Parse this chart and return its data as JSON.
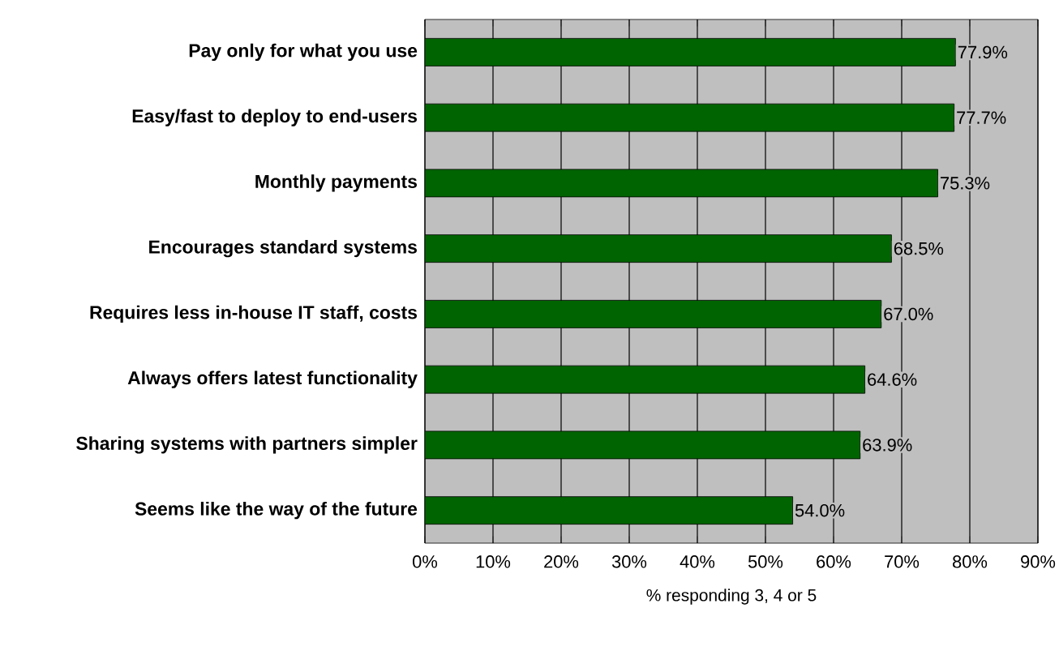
{
  "chart_data": {
    "type": "bar",
    "orientation": "horizontal",
    "xlabel": "% responding 3, 4 or 5",
    "categories": [
      "Pay only for what you use",
      "Easy/fast to deploy to end-users",
      "Monthly payments",
      "Encourages standard systems",
      "Requires less in-house IT staff, costs",
      "Always offers latest functionality",
      "Sharing systems with partners simpler",
      "Seems like the way of the future"
    ],
    "values": [
      77.9,
      77.7,
      75.3,
      68.5,
      67.0,
      64.6,
      63.9,
      54.0
    ],
    "value_labels": [
      "77.9%",
      "77.7%",
      "75.3%",
      "68.5%",
      "67.0%",
      "64.6%",
      "63.9%",
      "54.0%"
    ],
    "color": "#006400",
    "xlim": [
      0,
      90
    ],
    "xticks": [
      {
        "value": 0,
        "label": "0%"
      },
      {
        "value": 10,
        "label": "10%"
      },
      {
        "value": 20,
        "label": "20%"
      },
      {
        "value": 30,
        "label": "30%"
      },
      {
        "value": 40,
        "label": "40%"
      },
      {
        "value": 50,
        "label": "50%"
      },
      {
        "value": 60,
        "label": "60%"
      },
      {
        "value": 70,
        "label": "70%"
      },
      {
        "value": 80,
        "label": "80%"
      },
      {
        "value": 90,
        "label": "90%"
      }
    ],
    "grid": "x"
  }
}
